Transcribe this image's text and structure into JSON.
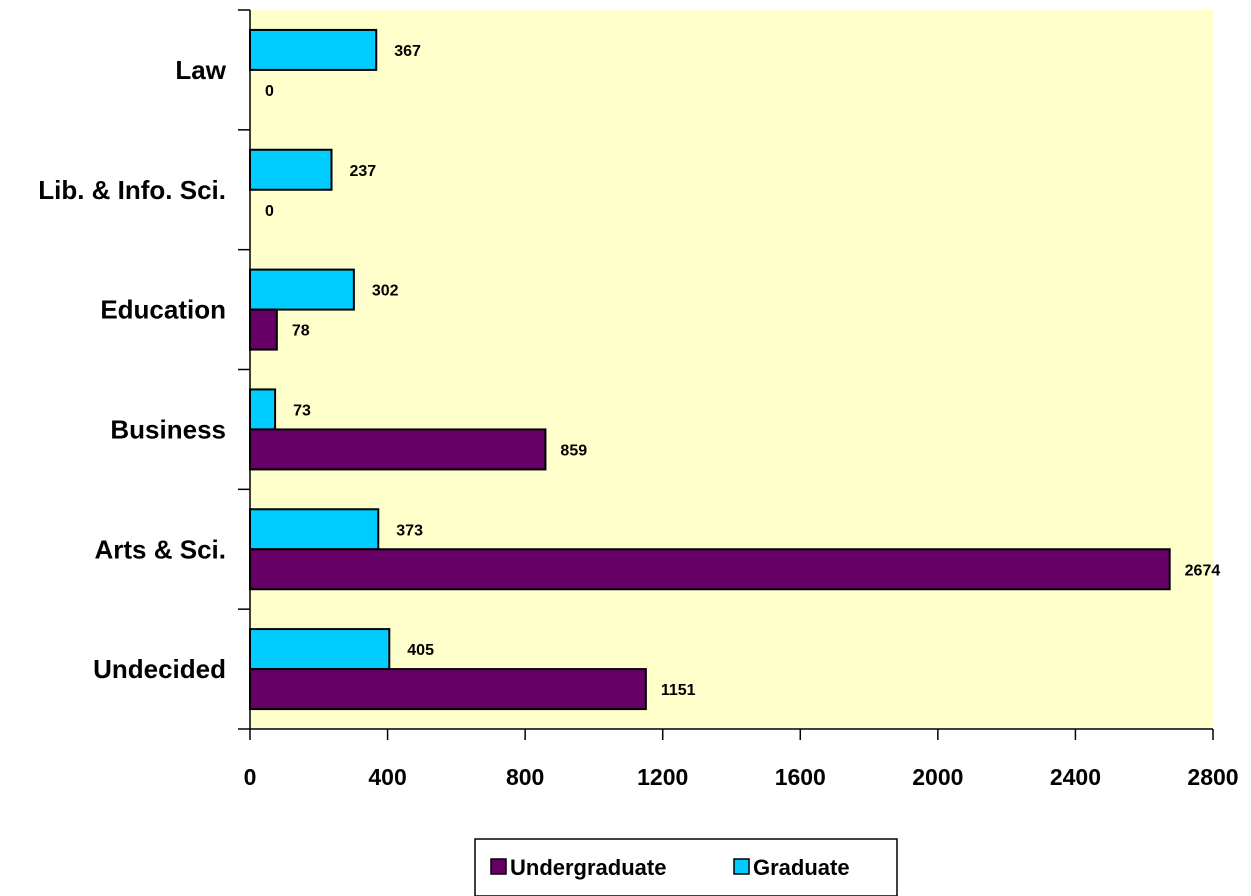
{
  "chart_data": {
    "type": "bar",
    "orientation": "horizontal",
    "categories": [
      "Undecided",
      "Arts & Sci.",
      "Business",
      "Education",
      "Lib. & Info. Sci.",
      "Law"
    ],
    "series": [
      {
        "name": "Undergraduate",
        "values": [
          1151,
          2674,
          859,
          78,
          0,
          0
        ]
      },
      {
        "name": "Graduate",
        "values": [
          405,
          373,
          73,
          302,
          237,
          367
        ]
      }
    ],
    "xlim": [
      0,
      2800
    ],
    "xticks": [
      "0",
      "400",
      "800",
      "1200",
      "1600",
      "2000",
      "2400",
      "2800"
    ],
    "title": "",
    "xlabel": "",
    "ylabel": "",
    "legend_position": "bottom",
    "grid": false,
    "data_labels": true,
    "colors": {
      "plot_background": "#FFFFCC",
      "Undergraduate": "#660066",
      "Graduate": "#00CCFF"
    }
  }
}
